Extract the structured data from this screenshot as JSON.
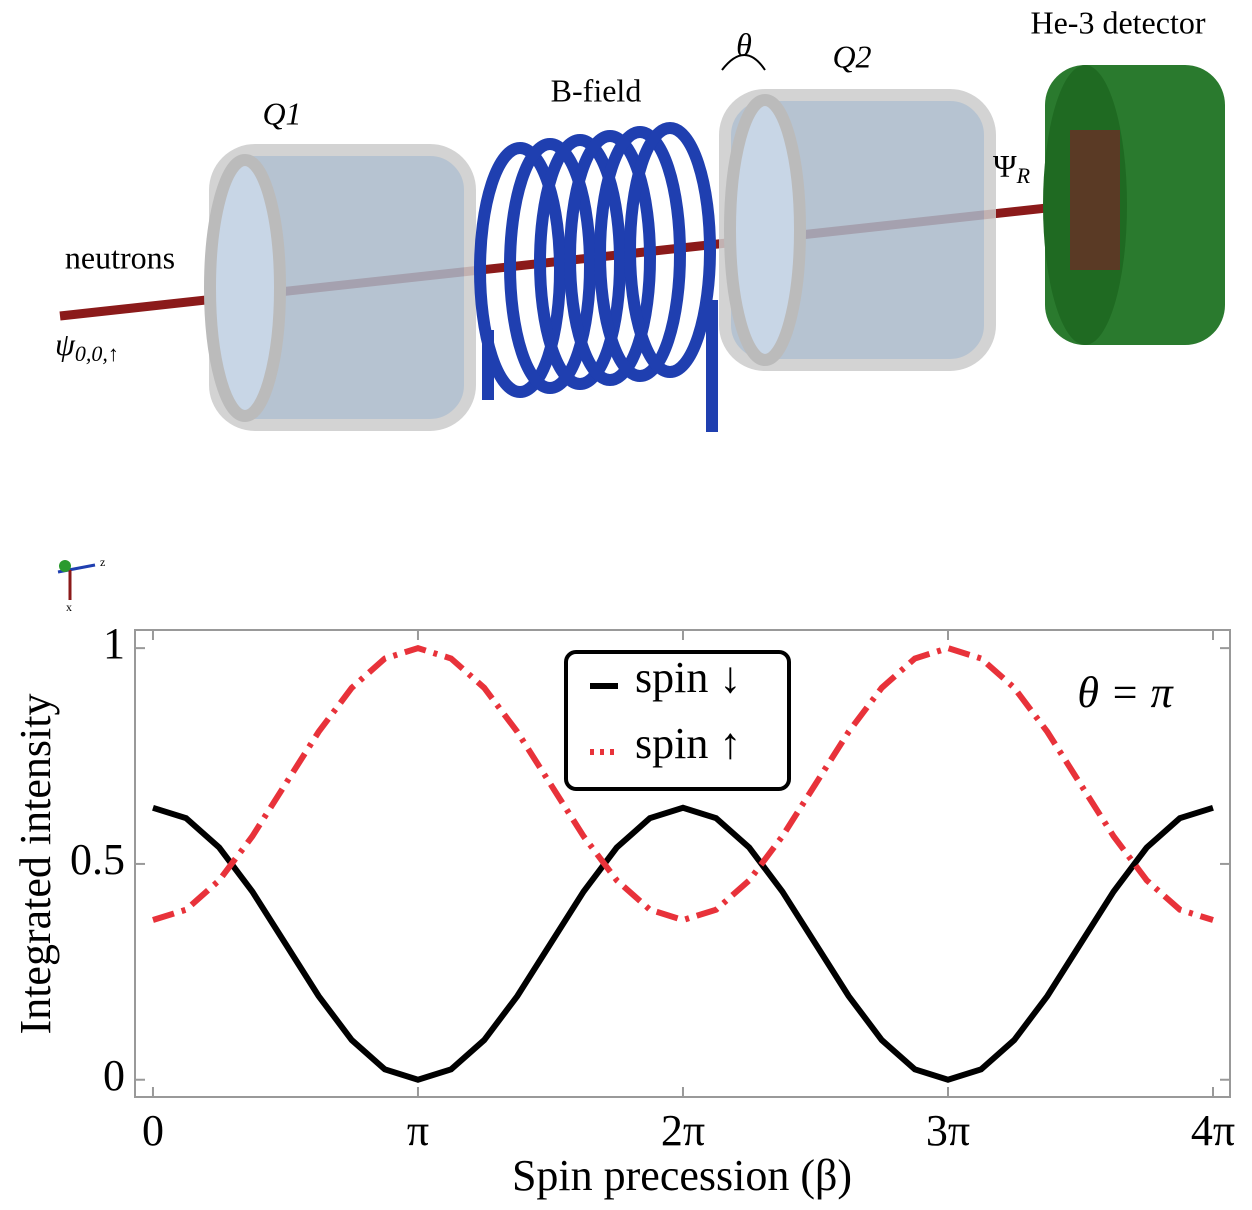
{
  "diagram": {
    "q1": "Q1",
    "bfield": "B-field",
    "q2": "Q2",
    "detector": "He-3 detector",
    "neutrons": "neutrons",
    "psi_in": {
      "symbol": "ψ",
      "subscript": "0,0,↑"
    },
    "psi_out": {
      "symbol": "Ψ",
      "subscript": "R"
    },
    "angle": "θ",
    "axes_icon": [
      "z",
      "x"
    ]
  },
  "chart_data": {
    "type": "line",
    "xlabel": "Spin precession (β)",
    "ylabel": "Integrated intensity",
    "annotation": "θ = π",
    "x": [
      0,
      0.3927,
      0.7854,
      1.1781,
      1.5708,
      1.9635,
      2.3562,
      2.7489,
      3.1416,
      3.5343,
      3.927,
      4.3197,
      4.7124,
      5.1051,
      5.4978,
      5.8905,
      6.2832,
      6.6759,
      7.0686,
      7.4613,
      7.854,
      8.2467,
      8.6394,
      9.0321,
      9.4248,
      9.8175,
      10.2102,
      10.6029,
      10.9956,
      11.3883,
      11.781,
      12.1737,
      12.5664
    ],
    "series": [
      {
        "name": "spin ↓",
        "color": "#000000",
        "dash": "solid",
        "values": [
          0.63,
          0.606,
          0.538,
          0.436,
          0.315,
          0.194,
          0.092,
          0.024,
          0,
          0.024,
          0.092,
          0.194,
          0.315,
          0.436,
          0.538,
          0.606,
          0.63,
          0.606,
          0.538,
          0.436,
          0.315,
          0.194,
          0.092,
          0.024,
          0,
          0.024,
          0.092,
          0.194,
          0.315,
          0.436,
          0.538,
          0.606,
          0.63
        ]
      },
      {
        "name": "spin ↑",
        "color": "#e8323a",
        "dash": "dashdot",
        "values": [
          0.37,
          0.394,
          0.462,
          0.564,
          0.685,
          0.806,
          0.908,
          0.976,
          1,
          0.976,
          0.908,
          0.806,
          0.685,
          0.564,
          0.462,
          0.394,
          0.37,
          0.394,
          0.462,
          0.564,
          0.685,
          0.806,
          0.908,
          0.976,
          1,
          0.976,
          0.908,
          0.806,
          0.685,
          0.564,
          0.462,
          0.394,
          0.37
        ]
      }
    ],
    "xlim": [
      -0.213,
      12.768
    ],
    "ylim": [
      -0.04,
      1.042
    ],
    "xticks": [
      0,
      {
        "value": 3.1416,
        "label": "π"
      },
      {
        "value": 6.2832,
        "label": "2π"
      },
      {
        "value": 9.4248,
        "label": "3π"
      },
      {
        "value": 12.5664,
        "label": "4π"
      }
    ],
    "yticks": [
      0,
      0.5,
      1
    ]
  }
}
